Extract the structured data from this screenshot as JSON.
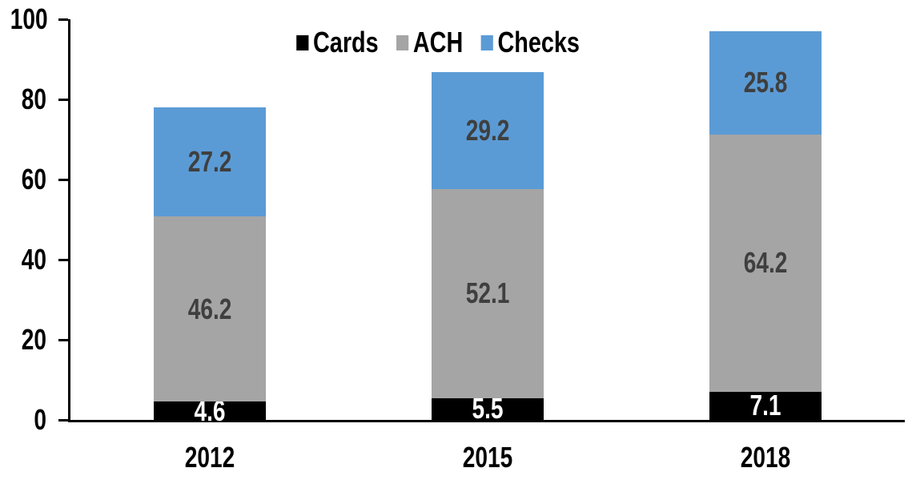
{
  "chart_data": {
    "type": "bar",
    "stacked": true,
    "title": "",
    "xlabel": "",
    "ylabel": "",
    "categories": [
      "2012",
      "2015",
      "2018"
    ],
    "series": [
      {
        "name": "Cards",
        "color": "#000000",
        "label_color": "#ffffff",
        "values": [
          4.6,
          5.5,
          7.1
        ]
      },
      {
        "name": "ACH",
        "color": "#a5a5a5",
        "label_color": "#3f3f3f",
        "values": [
          46.2,
          52.1,
          64.2
        ]
      },
      {
        "name": "Checks",
        "color": "#5b9bd5",
        "label_color": "#3f3f3f",
        "values": [
          27.2,
          29.2,
          25.8
        ]
      }
    ],
    "totals": [
      78.0,
      86.8,
      97.1
    ],
    "ylim": [
      0,
      100
    ],
    "yticks": [
      0,
      20,
      40,
      60,
      80,
      100
    ],
    "grid": false,
    "legend_position": "top-center",
    "axis_color": "#000000",
    "background_color": "#ffffff"
  }
}
